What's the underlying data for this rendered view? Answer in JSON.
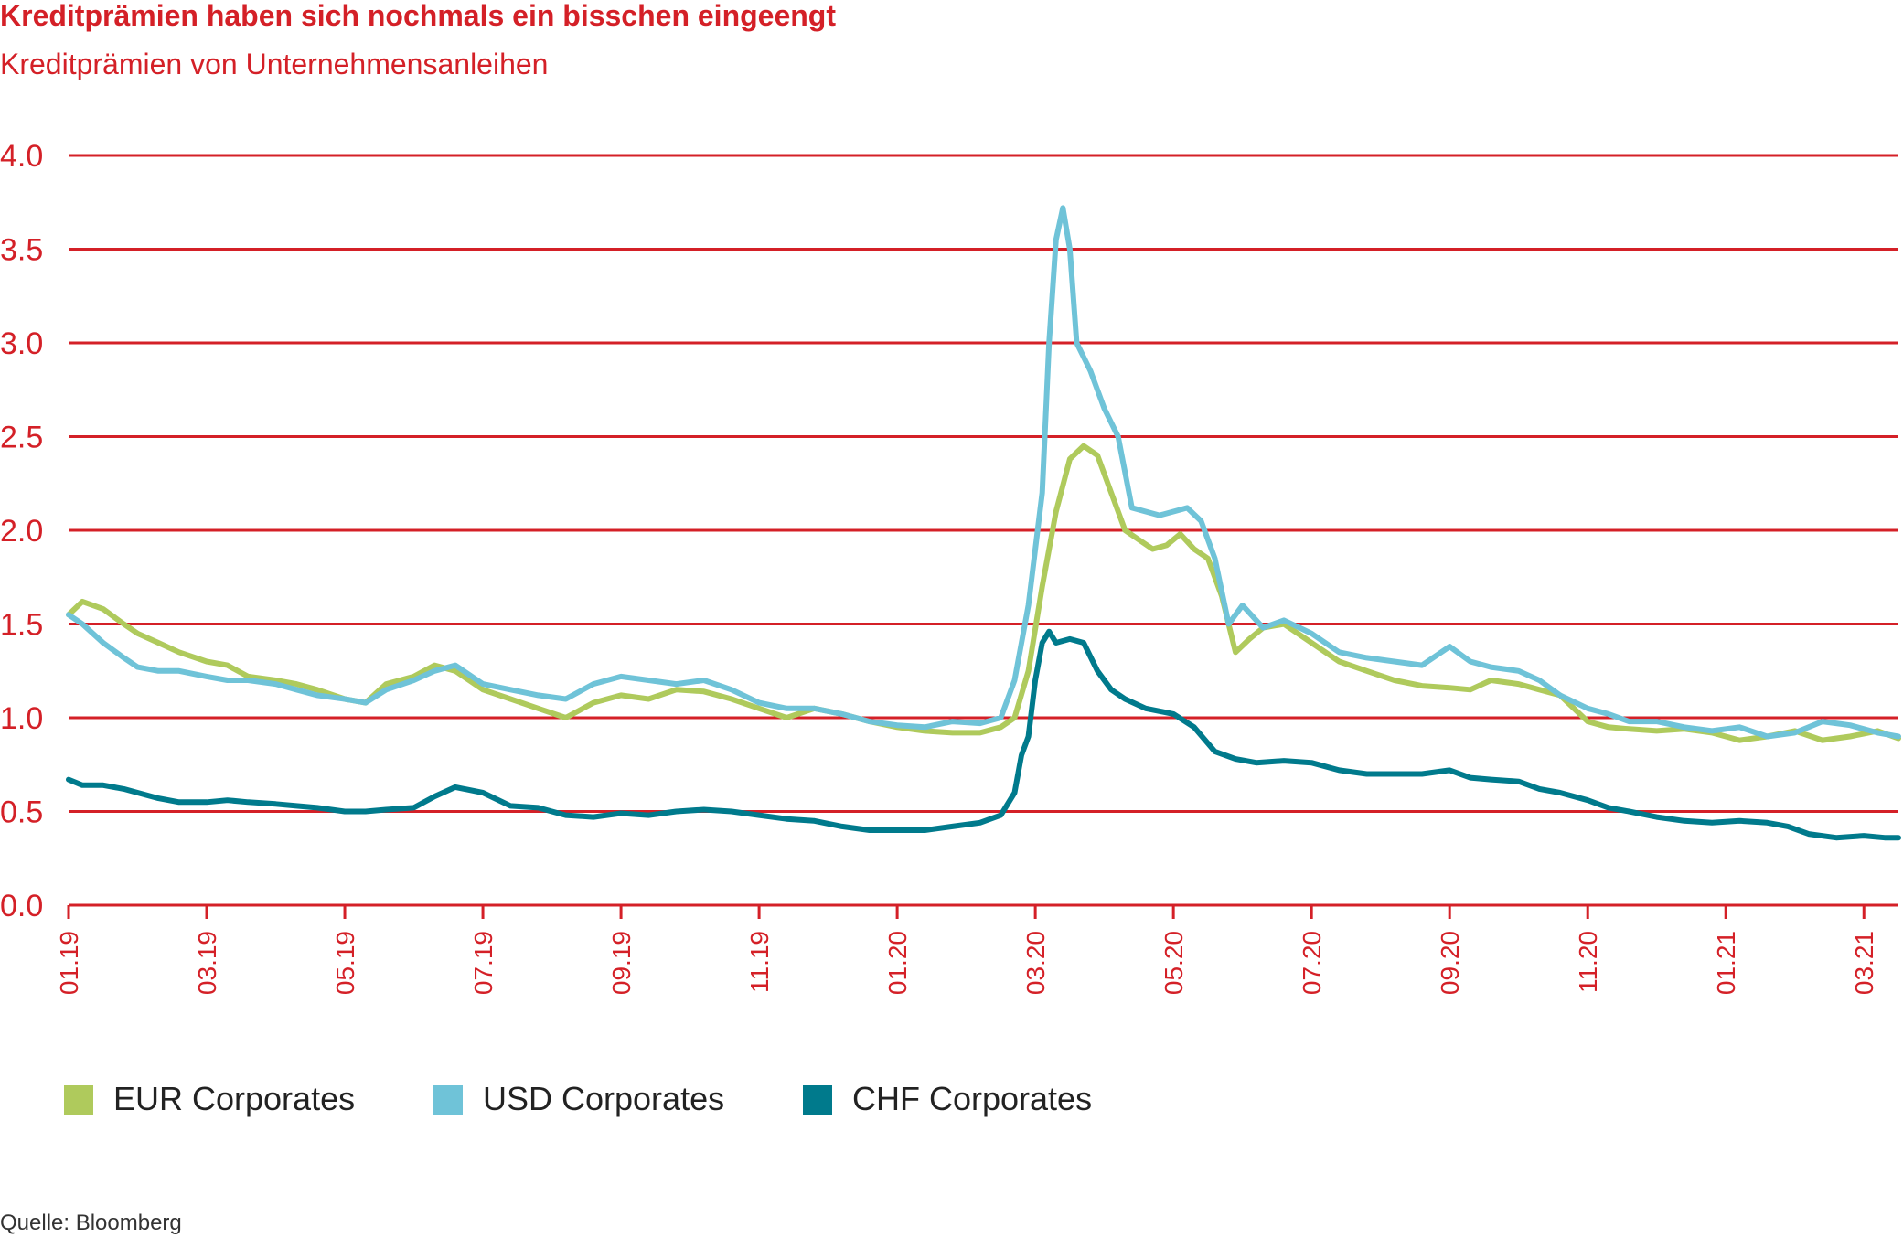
{
  "title": "Kreditprämien haben sich nochmals ein bisschen eingeengt",
  "subtitle": "Kreditprämien von Unternehmensanleihen",
  "source": "Quelle: Bloomberg",
  "colors": {
    "text_red": "#d42027",
    "grid_red": "#d42027",
    "eur": "#afca5c",
    "usd": "#6fc3d8",
    "chf": "#007a8c",
    "source_text": "#333333"
  },
  "chart_data": {
    "type": "line",
    "title": "Kreditprämien haben sich nochmals ein bisschen eingeengt",
    "subtitle": "Kreditprämien von Unternehmensanleihen",
    "ylim": [
      0,
      4
    ],
    "yticks": [
      "0.0",
      "0.5",
      "1.0",
      "1.5",
      "2.0",
      "2.5",
      "3.0",
      "3.5",
      "4.0"
    ],
    "xlim": [
      0,
      26.5
    ],
    "xticks": [
      {
        "pos": 0,
        "label": "01.19"
      },
      {
        "pos": 2,
        "label": "03.19"
      },
      {
        "pos": 4,
        "label": "05.19"
      },
      {
        "pos": 6,
        "label": "07.19"
      },
      {
        "pos": 8,
        "label": "09.19"
      },
      {
        "pos": 10,
        "label": "11.19"
      },
      {
        "pos": 12,
        "label": "01.20"
      },
      {
        "pos": 14,
        "label": "03.20"
      },
      {
        "pos": 16,
        "label": "05.20"
      },
      {
        "pos": 18,
        "label": "07.20"
      },
      {
        "pos": 20,
        "label": "09.20"
      },
      {
        "pos": 22,
        "label": "11.20"
      },
      {
        "pos": 24,
        "label": "01.21"
      },
      {
        "pos": 26,
        "label": "03.21"
      }
    ],
    "grid": "horizontal",
    "legend_position": "bottom-left",
    "series": [
      {
        "name": "EUR Corporates",
        "color": "#afca5c",
        "x": [
          0,
          0.2,
          0.5,
          0.8,
          1.0,
          1.3,
          1.6,
          2.0,
          2.3,
          2.6,
          3.0,
          3.3,
          3.6,
          4.0,
          4.3,
          4.6,
          5.0,
          5.3,
          5.6,
          6.0,
          6.4,
          6.8,
          7.2,
          7.6,
          8.0,
          8.4,
          8.8,
          9.2,
          9.6,
          10.0,
          10.4,
          10.8,
          11.2,
          11.6,
          12.0,
          12.4,
          12.8,
          13.2,
          13.5,
          13.7,
          13.9,
          14.1,
          14.3,
          14.5,
          14.7,
          14.9,
          15.1,
          15.3,
          15.5,
          15.7,
          15.9,
          16.1,
          16.3,
          16.5,
          16.7,
          16.9,
          17.1,
          17.3,
          17.6,
          18.0,
          18.4,
          18.8,
          19.2,
          19.6,
          20.0,
          20.3,
          20.6,
          21.0,
          21.3,
          21.6,
          22.0,
          22.3,
          22.6,
          23.0,
          23.4,
          23.8,
          24.2,
          24.6,
          25.0,
          25.4,
          25.8,
          26.2,
          26.5
        ],
        "values": [
          1.55,
          1.62,
          1.58,
          1.5,
          1.45,
          1.4,
          1.35,
          1.3,
          1.28,
          1.22,
          1.2,
          1.18,
          1.15,
          1.1,
          1.08,
          1.18,
          1.22,
          1.28,
          1.25,
          1.15,
          1.1,
          1.05,
          1.0,
          1.08,
          1.12,
          1.1,
          1.15,
          1.14,
          1.1,
          1.05,
          1.0,
          1.05,
          1.02,
          0.98,
          0.95,
          0.93,
          0.92,
          0.92,
          0.95,
          1.0,
          1.25,
          1.7,
          2.1,
          2.38,
          2.45,
          2.4,
          2.2,
          2.0,
          1.95,
          1.9,
          1.92,
          1.98,
          1.9,
          1.85,
          1.65,
          1.35,
          1.42,
          1.48,
          1.5,
          1.4,
          1.3,
          1.25,
          1.2,
          1.17,
          1.16,
          1.15,
          1.2,
          1.18,
          1.15,
          1.12,
          0.98,
          0.95,
          0.94,
          0.93,
          0.94,
          0.92,
          0.88,
          0.9,
          0.93,
          0.88,
          0.9,
          0.93,
          0.89
        ]
      },
      {
        "name": "USD Corporates",
        "color": "#6fc3d8",
        "x": [
          0,
          0.2,
          0.5,
          0.8,
          1.0,
          1.3,
          1.6,
          2.0,
          2.3,
          2.6,
          3.0,
          3.3,
          3.6,
          4.0,
          4.3,
          4.6,
          5.0,
          5.3,
          5.6,
          6.0,
          6.4,
          6.8,
          7.2,
          7.6,
          8.0,
          8.4,
          8.8,
          9.2,
          9.6,
          10.0,
          10.4,
          10.8,
          11.2,
          11.6,
          12.0,
          12.4,
          12.8,
          13.2,
          13.5,
          13.7,
          13.9,
          14.1,
          14.2,
          14.3,
          14.4,
          14.5,
          14.6,
          14.8,
          15.0,
          15.2,
          15.4,
          15.6,
          15.8,
          16.0,
          16.2,
          16.4,
          16.6,
          16.8,
          17.0,
          17.3,
          17.6,
          18.0,
          18.4,
          18.8,
          19.2,
          19.6,
          20.0,
          20.3,
          20.6,
          21.0,
          21.3,
          21.6,
          22.0,
          22.3,
          22.6,
          23.0,
          23.4,
          23.8,
          24.2,
          24.6,
          25.0,
          25.4,
          25.8,
          26.2,
          26.5
        ],
        "values": [
          1.55,
          1.5,
          1.4,
          1.32,
          1.27,
          1.25,
          1.25,
          1.22,
          1.2,
          1.2,
          1.18,
          1.15,
          1.12,
          1.1,
          1.08,
          1.15,
          1.2,
          1.25,
          1.28,
          1.18,
          1.15,
          1.12,
          1.1,
          1.18,
          1.22,
          1.2,
          1.18,
          1.2,
          1.15,
          1.08,
          1.05,
          1.05,
          1.02,
          0.98,
          0.96,
          0.95,
          0.98,
          0.97,
          1.0,
          1.2,
          1.6,
          2.2,
          3.0,
          3.55,
          3.72,
          3.5,
          3.0,
          2.85,
          2.65,
          2.5,
          2.12,
          2.1,
          2.08,
          2.1,
          2.12,
          2.05,
          1.85,
          1.5,
          1.6,
          1.48,
          1.52,
          1.45,
          1.35,
          1.32,
          1.3,
          1.28,
          1.38,
          1.3,
          1.27,
          1.25,
          1.2,
          1.12,
          1.05,
          1.02,
          0.98,
          0.98,
          0.95,
          0.93,
          0.95,
          0.9,
          0.92,
          0.98,
          0.96,
          0.92,
          0.9
        ]
      },
      {
        "name": "CHF Corporates",
        "color": "#007a8c",
        "x": [
          0,
          0.2,
          0.5,
          0.8,
          1.0,
          1.3,
          1.6,
          2.0,
          2.3,
          2.6,
          3.0,
          3.3,
          3.6,
          4.0,
          4.3,
          4.6,
          5.0,
          5.3,
          5.6,
          6.0,
          6.4,
          6.8,
          7.2,
          7.6,
          8.0,
          8.4,
          8.8,
          9.2,
          9.6,
          10.0,
          10.4,
          10.8,
          11.2,
          11.6,
          12.0,
          12.4,
          12.8,
          13.2,
          13.5,
          13.7,
          13.8,
          13.9,
          14.0,
          14.1,
          14.2,
          14.3,
          14.5,
          14.7,
          14.9,
          15.1,
          15.3,
          15.6,
          16.0,
          16.3,
          16.6,
          16.9,
          17.2,
          17.6,
          18.0,
          18.4,
          18.8,
          19.2,
          19.6,
          20.0,
          20.3,
          20.6,
          21.0,
          21.3,
          21.6,
          22.0,
          22.3,
          22.6,
          23.0,
          23.4,
          23.8,
          24.2,
          24.6,
          24.9,
          25.2,
          25.6,
          26.0,
          26.3,
          26.5
        ],
        "values": [
          0.67,
          0.64,
          0.64,
          0.62,
          0.6,
          0.57,
          0.55,
          0.55,
          0.56,
          0.55,
          0.54,
          0.53,
          0.52,
          0.5,
          0.5,
          0.51,
          0.52,
          0.58,
          0.63,
          0.6,
          0.53,
          0.52,
          0.48,
          0.47,
          0.49,
          0.48,
          0.5,
          0.51,
          0.5,
          0.48,
          0.46,
          0.45,
          0.42,
          0.4,
          0.4,
          0.4,
          0.42,
          0.44,
          0.48,
          0.6,
          0.8,
          0.9,
          1.2,
          1.4,
          1.46,
          1.4,
          1.42,
          1.4,
          1.25,
          1.15,
          1.1,
          1.05,
          1.02,
          0.95,
          0.82,
          0.78,
          0.76,
          0.77,
          0.76,
          0.72,
          0.7,
          0.7,
          0.7,
          0.72,
          0.68,
          0.67,
          0.66,
          0.62,
          0.6,
          0.56,
          0.52,
          0.5,
          0.47,
          0.45,
          0.44,
          0.45,
          0.44,
          0.42,
          0.38,
          0.36,
          0.37,
          0.36,
          0.36
        ]
      }
    ]
  }
}
